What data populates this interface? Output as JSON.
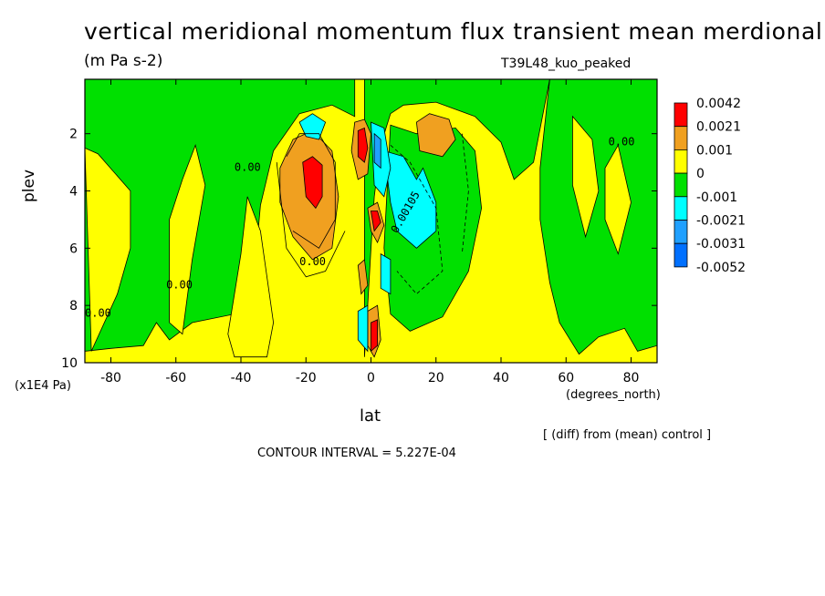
{
  "title": "vertical meridional momentum flux transient mean merdional",
  "units": "(m Pa s-2)",
  "run_name": "T39L48_kuo_peaked",
  "ylabel": "plev",
  "yunits": "(x1E4 Pa)",
  "xunits": "(degrees_north)",
  "xlabel": "lat",
  "diff_note": "[ (diff) from (mean) control ]",
  "contour_interval": "CONTOUR INTERVAL = 5.227E-04",
  "chart_data": {
    "type": "heatmap",
    "title": "vertical meridional momentum flux transient mean merdional",
    "xlabel": "lat",
    "ylabel": "plev",
    "xlim": [
      -88,
      88
    ],
    "ylim": [
      10,
      0.1
    ],
    "x_ticks": [
      -80,
      -60,
      -40,
      -20,
      0,
      20,
      40,
      60,
      80
    ],
    "y_ticks": [
      2,
      4,
      6,
      8,
      10
    ],
    "contour_labels": [
      "0.00",
      "0.00105"
    ],
    "legend": {
      "placement": "right",
      "levels": [
        "0.0042",
        "0.0021",
        "0.001",
        "0",
        "-0.001",
        "-0.0021",
        "-0.0031",
        "-0.0052"
      ],
      "colors": [
        "#ff0000",
        "#f0a020",
        "#ffff00",
        "#00e000",
        "#00ffff",
        "#20a0ff",
        "#0070ff"
      ]
    }
  }
}
